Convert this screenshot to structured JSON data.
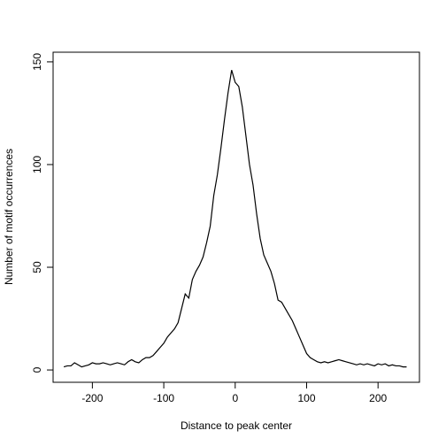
{
  "chart_data": {
    "type": "line",
    "xlabel": "Distance to peak center",
    "ylabel": "Number of motif occurrences",
    "x": [
      -240,
      -235,
      -230,
      -225,
      -220,
      -215,
      -210,
      -205,
      -200,
      -195,
      -190,
      -185,
      -180,
      -175,
      -170,
      -165,
      -160,
      -155,
      -150,
      -145,
      -140,
      -135,
      -130,
      -125,
      -120,
      -115,
      -110,
      -105,
      -100,
      -95,
      -90,
      -85,
      -80,
      -75,
      -70,
      -65,
      -60,
      -55,
      -50,
      -45,
      -40,
      -35,
      -30,
      -25,
      -20,
      -15,
      -10,
      -5,
      0,
      5,
      10,
      15,
      20,
      25,
      30,
      35,
      40,
      45,
      50,
      55,
      60,
      65,
      70,
      75,
      80,
      85,
      90,
      95,
      100,
      105,
      110,
      115,
      120,
      125,
      130,
      135,
      140,
      145,
      150,
      155,
      160,
      165,
      170,
      175,
      180,
      185,
      190,
      195,
      200,
      205,
      210,
      215,
      220,
      225,
      230,
      235,
      240
    ],
    "series": [
      {
        "color": "#000000",
        "values": [
          1.5,
          2,
          2,
          3.5,
          2.5,
          1.5,
          2,
          2.5,
          3.5,
          3,
          3,
          3.5,
          3,
          2.5,
          3,
          3.5,
          3,
          2.5,
          4,
          5,
          4,
          3.5,
          5,
          6,
          6,
          7,
          9,
          11,
          13,
          16,
          18,
          20,
          23,
          30,
          37,
          35,
          44,
          48,
          51,
          55,
          62,
          70,
          85,
          95,
          108,
          122,
          135,
          146,
          140,
          138,
          128,
          114,
          100,
          90,
          76,
          64,
          56,
          52,
          48,
          42,
          34,
          33,
          30,
          27,
          24,
          20,
          16,
          12,
          8,
          6,
          5,
          4,
          3.5,
          4,
          3.5,
          4,
          4.5,
          5,
          4.5,
          4,
          3.5,
          3,
          2.5,
          3,
          2.5,
          3,
          2.5,
          2,
          3,
          2.5,
          3,
          2,
          2.5,
          2,
          2,
          1.5,
          1.5
        ]
      }
    ],
    "xlim": [
      -255,
      258
    ],
    "xticks": [
      -200,
      -100,
      0,
      100,
      200
    ],
    "ylim": [
      -6,
      154.7
    ],
    "yticks": [
      0,
      50,
      100,
      150
    ]
  }
}
